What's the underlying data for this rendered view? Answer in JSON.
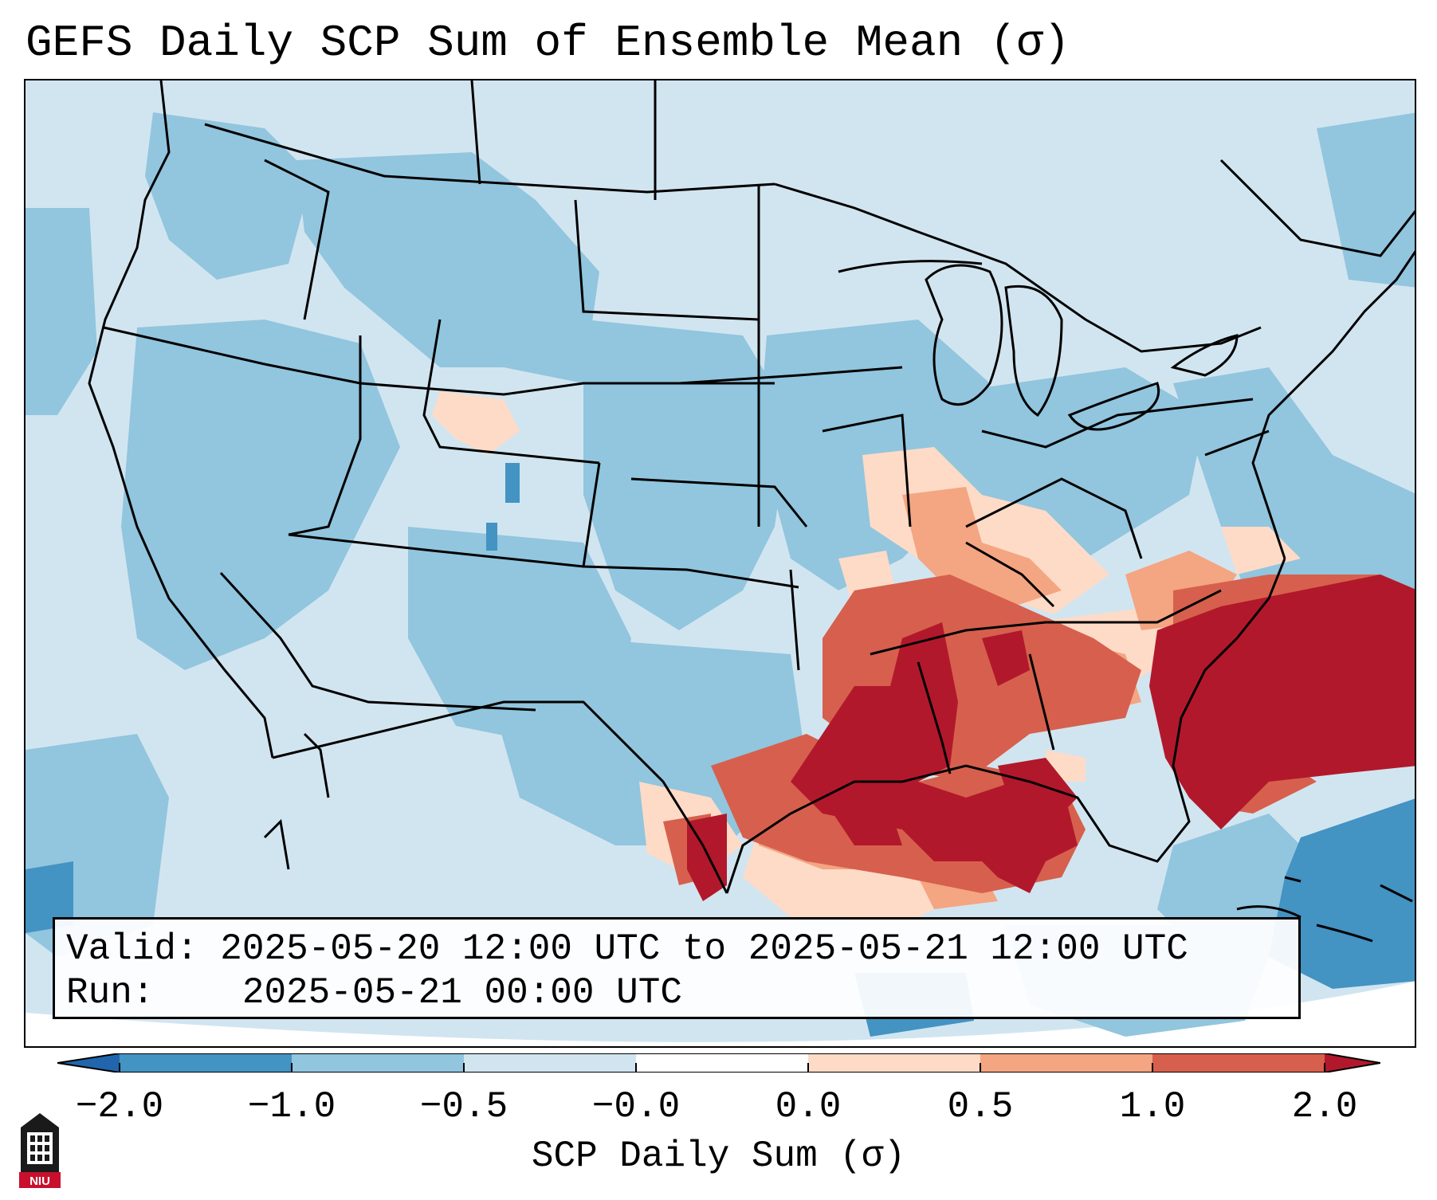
{
  "title": "GEFS Daily SCP Sum of Ensemble Mean (σ)",
  "info": {
    "valid_label": "Valid:",
    "valid_value": "2025-05-20 12:00 UTC to 2025-05-21 12:00 UTC",
    "run_label": "Run:",
    "run_value": "2025-05-21 00:00 UTC"
  },
  "colorbar": {
    "label": "SCP Daily Sum (σ)",
    "ticks": [
      "−2.0",
      "−1.0",
      "−0.5",
      "−0.0",
      "0.0",
      "0.5",
      "1.0",
      "2.0"
    ],
    "colors": {
      "under": "#2166ac",
      "lt_-1": "#4393c3",
      "-1_-0.5": "#92c5de",
      "-0.5_0": "#d1e5f0",
      "0_0.5": "#fddbc7",
      "0.5_1": "#f4a582",
      "1_2": "#d6604d",
      "over": "#b2182b",
      "ge_2": "#b2182b"
    }
  },
  "map": {
    "region": "Continental United States",
    "dominant_field": "-0.5 to 0 σ (light blue)",
    "highlight_region": "Lower Mississippi Valley, Gulf Coast and Southeast: 1 to 2+ σ"
  },
  "logo_text": "NIU"
}
